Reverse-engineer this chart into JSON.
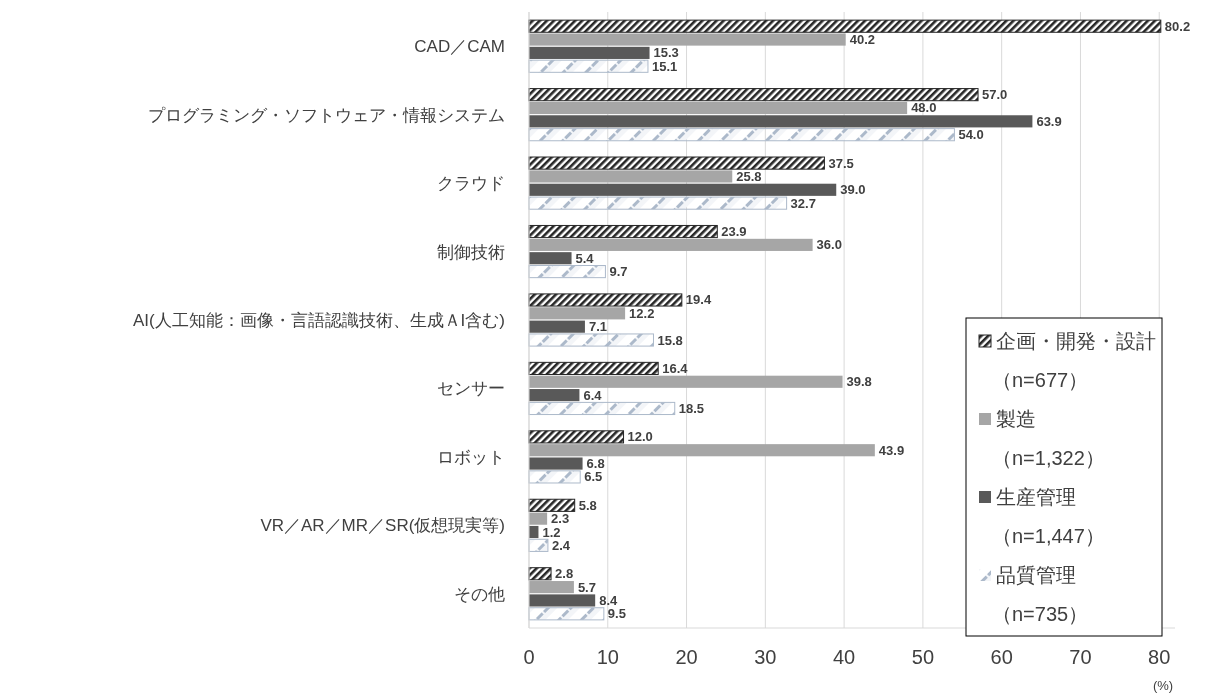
{
  "chart_data": {
    "type": "bar",
    "orientation": "horizontal",
    "xlabel": "(%)",
    "categories": [
      "CAD／CAM",
      "プログラミング・ソフトウェア・情報システム",
      "クラウド",
      "制御技術",
      "AI(人工知能：画像・言語認識技術、生成ＡI含む)",
      "センサー",
      "ロボット",
      "VR／AR／MR／SR(仮想現実等)",
      "その他"
    ],
    "series": [
      {
        "name": "企画・開発・設計（n=677）",
        "color": "#262626",
        "values": [
          80.2,
          57.0,
          37.5,
          23.9,
          19.4,
          16.4,
          12.0,
          5.8,
          2.8
        ],
        "value_labels": [
          "80.2",
          "57.0",
          "37.5",
          "23.9",
          "19.4",
          "16.4",
          "12.0",
          "5.8",
          "2.8"
        ]
      },
      {
        "name": "製造（n=1,322）",
        "color": "#a6a6a6",
        "values": [
          40.2,
          48.0,
          25.8,
          36.0,
          12.2,
          39.8,
          43.9,
          2.3,
          5.7
        ],
        "value_labels": [
          "40.2",
          "48.0",
          "25.8",
          "36.0",
          "12.2",
          "39.8",
          "43.9",
          "2.3",
          "5.7"
        ]
      },
      {
        "name": "生産管理（n=1,447）",
        "color": "#595959",
        "values": [
          15.3,
          63.9,
          39.0,
          5.4,
          7.1,
          6.4,
          6.8,
          1.2,
          8.4
        ],
        "value_labels": [
          "15.3",
          "63.9",
          "39.0",
          "5.4",
          "7.1",
          "6.4",
          "6.8",
          "1.2",
          "8.4"
        ]
      },
      {
        "name": "品質管理（n=735）",
        "color": "#acb9ca",
        "values": [
          15.1,
          54.0,
          32.7,
          9.7,
          15.8,
          18.5,
          6.5,
          2.4,
          9.5
        ],
        "value_labels": [
          "15.1",
          "54.0",
          "32.7",
          "9.7",
          "15.8",
          "18.5",
          "6.5",
          "2.4",
          "9.5"
        ]
      }
    ],
    "xlim": [
      0,
      82
    ],
    "xticks": [
      0,
      10,
      20,
      30,
      40,
      50,
      60,
      70,
      80
    ],
    "grid": "x",
    "legend": "bottom right"
  }
}
